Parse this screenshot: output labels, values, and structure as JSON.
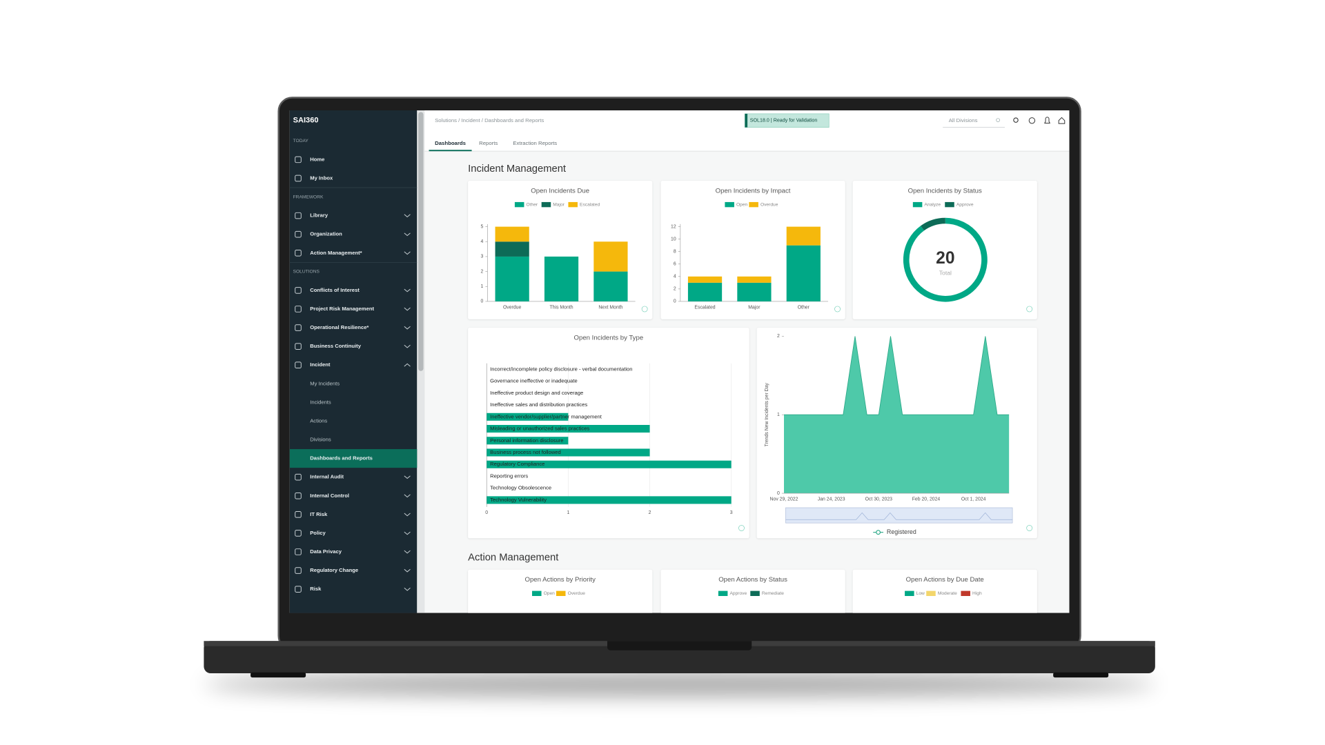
{
  "sidebar": {
    "logo": "SAI360",
    "groups": [
      {
        "label": "TODAY",
        "items": [
          "Home",
          "My Inbox"
        ]
      },
      {
        "label": "FRAMEWORK",
        "items": [
          "Library",
          "Organization",
          "Action Management*"
        ]
      },
      {
        "label": "SOLUTIONS",
        "items": [
          "Conflicts of Interest",
          "Project Risk Management",
          "Operational Resilience*",
          "Business Continuity",
          "Incident",
          "Internal Audit",
          "Internal Control",
          "IT Risk",
          "Policy",
          "Data Privacy",
          "Regulatory Change",
          "Risk"
        ]
      }
    ],
    "expanded_item": 4,
    "subitems": [
      "My Incidents",
      "Incidents",
      "Actions",
      "Divisions",
      "Dashboards and Reports"
    ],
    "active_subitem": 4
  },
  "header": {
    "breadcrumb": "Solutions / Incident / Dashboards and Reports",
    "status_badge": "SOL18.0 | Ready for Validation",
    "division_filter": "All Divisions"
  },
  "tabs": {
    "items": [
      "Dashboards",
      "Reports",
      "Extraction Reports"
    ],
    "active": 0
  },
  "sections": [
    "Incident Management",
    "Action Management"
  ],
  "chart_data": [
    {
      "type": "bar",
      "stacked": true,
      "title": "Open Incidents Due",
      "categories": [
        "Overdue",
        "This Month",
        "Next Month"
      ],
      "series": [
        {
          "name": "Other",
          "color": "#00a886",
          "values": [
            3,
            3,
            2
          ]
        },
        {
          "name": "Major",
          "color": "#0d6b57",
          "values": [
            1,
            0,
            0
          ]
        },
        {
          "name": "Escalated",
          "color": "#f5b80c",
          "values": [
            1,
            0,
            2
          ]
        }
      ],
      "ylim": [
        0,
        5
      ],
      "yticks": [
        0,
        1,
        2,
        3,
        4,
        5
      ]
    },
    {
      "type": "bar",
      "stacked": true,
      "title": "Open Incidents by Impact",
      "categories": [
        "Escalated",
        "Major",
        "Other"
      ],
      "series": [
        {
          "name": "Open",
          "color": "#00a886",
          "values": [
            3,
            3,
            9
          ]
        },
        {
          "name": "Overdue",
          "color": "#f5b80c",
          "values": [
            1,
            1,
            3
          ]
        }
      ],
      "ylim": [
        0,
        12
      ],
      "yticks": [
        0,
        2,
        4,
        6,
        8,
        10,
        12
      ]
    },
    {
      "type": "donut",
      "title": "Open Incidents by Status",
      "series": [
        {
          "name": "Analyze",
          "color": "#00a886",
          "values": [
            18
          ]
        },
        {
          "name": "Approve",
          "color": "#0d6b57",
          "values": [
            2
          ]
        }
      ],
      "total": 20,
      "total_label": "Total"
    },
    {
      "type": "bar",
      "horizontal": true,
      "title": "Open Incidents by Type",
      "color": "#00a886",
      "categories": [
        "Incorrect/incomplete policy disclosure - verbal documentation",
        "Governance ineffective or inadequate",
        "Ineffective product design and coverage",
        "Ineffective sales and distribution practices",
        "Ineffective vendor/supplier/partner management",
        "Misleading or unauthorized sales practices",
        "Personal information disclosure",
        "Business process not followed",
        "Regulatory Compliance",
        "Reporting errors",
        "Technology Obsolescence",
        "Technology Vulnerability"
      ],
      "values": [
        0,
        0,
        0,
        0,
        1,
        2,
        1,
        2,
        3,
        0,
        0,
        3
      ],
      "xlim": [
        0,
        3
      ],
      "xticks": [
        0,
        1,
        2,
        3
      ],
      "grid": true
    },
    {
      "type": "area",
      "y_label": "Trends New Incidents per Day",
      "categories": [
        "Nov 29, 2022",
        null,
        null,
        null,
        "Jan 24, 2023",
        null,
        null,
        null,
        "Oct 30, 2023",
        null,
        null,
        null,
        "Feb 20, 2024",
        null,
        null,
        null,
        "Oct 1, 2024",
        null,
        null,
        null
      ],
      "series": [
        {
          "name": "Registered",
          "color": "#4ec9a9",
          "values": [
            1,
            1,
            1,
            1,
            1,
            1,
            2,
            1,
            1,
            2,
            1,
            1,
            1,
            1,
            1,
            1,
            1,
            2,
            1,
            1
          ]
        }
      ],
      "ylim": [
        0,
        2
      ],
      "yticks": [
        0,
        1,
        2
      ]
    },
    {
      "type": "bar",
      "title": "Open Actions by Priority",
      "series": [
        {
          "name": "Open",
          "color": "#00a886"
        },
        {
          "name": "Overdue",
          "color": "#f5b80c"
        }
      ]
    },
    {
      "type": "donut",
      "title": "Open Actions by Status",
      "series": [
        {
          "name": "Approve",
          "color": "#00a886"
        },
        {
          "name": "Remediate",
          "color": "#0d6b57"
        }
      ]
    },
    {
      "type": "bar",
      "title": "Open Actions by Due Date",
      "series": [
        {
          "name": "Low",
          "color": "#00a886"
        },
        {
          "name": "Moderate",
          "color": "#f3d66b"
        },
        {
          "name": "High",
          "color": "#c0392b"
        }
      ]
    }
  ]
}
